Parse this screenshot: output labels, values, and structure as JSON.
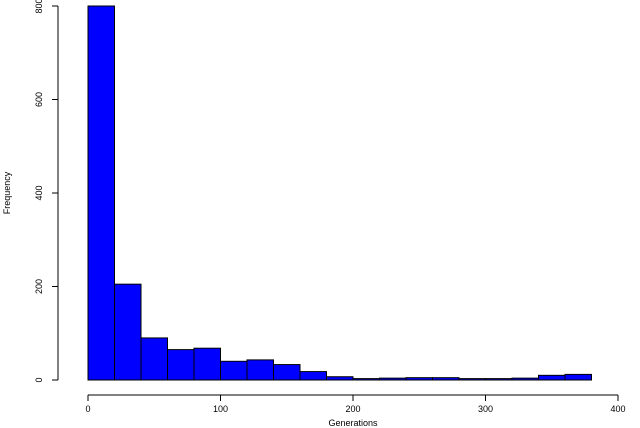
{
  "chart_data": {
    "type": "bar",
    "title": "",
    "xlabel": "Generations",
    "ylabel": "Frequency",
    "bin_edges": [
      0,
      20,
      40,
      60,
      80,
      100,
      120,
      140,
      160,
      180,
      200,
      220,
      240,
      260,
      280,
      300,
      320,
      340,
      360,
      380
    ],
    "values": [
      800,
      205,
      90,
      65,
      68,
      40,
      43,
      33,
      18,
      7,
      3,
      4,
      5,
      5,
      3,
      3,
      4,
      10,
      12
    ],
    "xlim": [
      0,
      400
    ],
    "ylim": [
      0,
      800
    ],
    "xticks": [
      0,
      100,
      200,
      300,
      400
    ],
    "yticks": [
      0,
      200,
      400,
      600,
      800
    ],
    "grid": false,
    "bar_color": "#0000ff",
    "edge_color": "#000000"
  }
}
